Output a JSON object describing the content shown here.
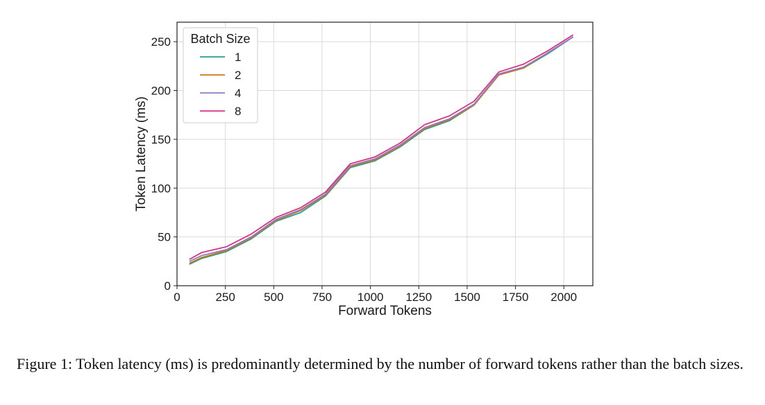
{
  "caption": "Figure 1: Token latency (ms) is predominantly determined by the number of forward tokens rather than the batch sizes.",
  "chart_data": {
    "type": "line",
    "xlabel": "Forward Tokens",
    "ylabel": "Token Latency (ms)",
    "xlim": [
      0,
      2150
    ],
    "ylim": [
      0,
      270
    ],
    "xticks": [
      0,
      250,
      500,
      750,
      1000,
      1250,
      1500,
      1750,
      2000
    ],
    "yticks": [
      0,
      50,
      100,
      150,
      200,
      250
    ],
    "grid": true,
    "legend": {
      "title": "Batch Size",
      "placement": "top-left"
    },
    "x": [
      64,
      128,
      256,
      384,
      512,
      640,
      768,
      896,
      1024,
      1152,
      1280,
      1408,
      1536,
      1664,
      1792,
      1920,
      2048
    ],
    "series": [
      {
        "name": "1",
        "color": "#2a9d8f",
        "values": [
          22,
          28,
          35,
          48,
          66,
          75,
          92,
          121,
          128,
          142,
          160,
          169,
          185,
          216,
          223,
          238,
          255
        ]
      },
      {
        "name": "2",
        "color": "#c97a12",
        "values": [
          23,
          29,
          36,
          49,
          67,
          77,
          93,
          122,
          129,
          143,
          161,
          170,
          185,
          216,
          223,
          239,
          255
        ]
      },
      {
        "name": "4",
        "color": "#8e7cc3",
        "values": [
          25,
          31,
          37,
          50,
          68,
          78,
          94,
          123,
          130,
          144,
          162,
          171,
          186,
          217,
          224,
          239,
          255
        ]
      },
      {
        "name": "8",
        "color": "#d63384",
        "values": [
          27,
          34,
          40,
          53,
          70,
          80,
          96,
          125,
          132,
          146,
          165,
          174,
          189,
          219,
          227,
          241,
          257
        ]
      }
    ]
  }
}
